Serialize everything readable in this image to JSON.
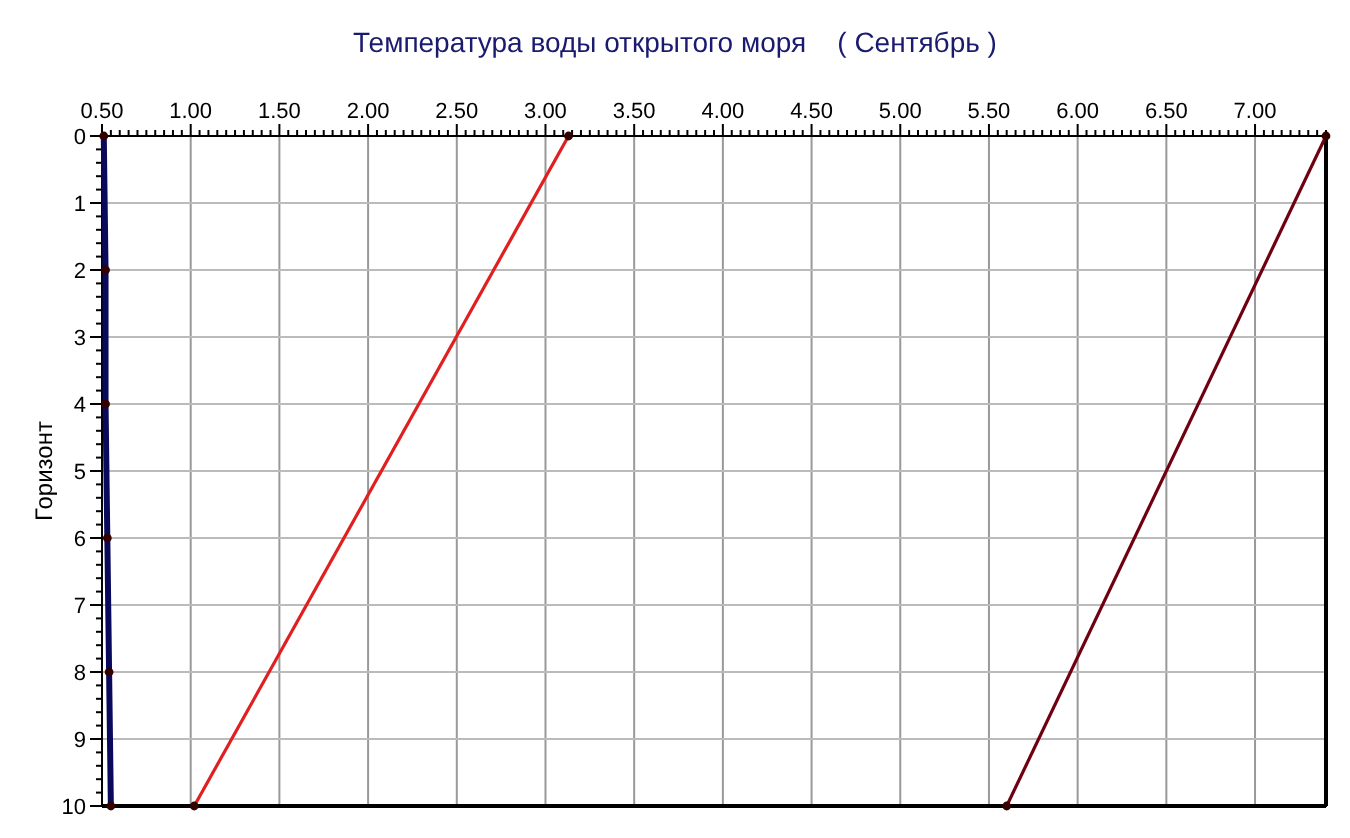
{
  "chart_data": {
    "type": "line",
    "title": "Температура воды открытого моря    ( Сентябрь )",
    "ylabel": "Горизонт",
    "xlim": [
      0.5,
      7.4
    ],
    "xticks": [
      {
        "value": 0.5,
        "label": "0.50"
      },
      {
        "value": 1,
        "label": "1.00"
      },
      {
        "value": 1.5,
        "label": "1.50"
      },
      {
        "value": 2,
        "label": "2.00"
      },
      {
        "value": 2.5,
        "label": "2.50"
      },
      {
        "value": 3,
        "label": "3.00"
      },
      {
        "value": 3.5,
        "label": "3.50"
      },
      {
        "value": 4,
        "label": "4.00"
      },
      {
        "value": 4.5,
        "label": "4.50"
      },
      {
        "value": 5,
        "label": "5.00"
      },
      {
        "value": 5.5,
        "label": "5.50"
      },
      {
        "value": 6,
        "label": "6.00"
      },
      {
        "value": 6.5,
        "label": "6.50"
      },
      {
        "value": 7,
        "label": "7.00"
      }
    ],
    "ylim": [
      10,
      0
    ],
    "yticks": [
      0,
      1,
      2,
      3,
      4,
      5,
      6,
      7,
      8,
      9,
      10
    ],
    "grid": true,
    "marker": "circle",
    "line_style": "solid",
    "series": [
      {
        "color": "#0a0a5c",
        "x": [
          0.51,
          0.52,
          0.52,
          0.53,
          0.54,
          0.55
        ],
        "values": [
          0,
          2,
          4,
          6,
          8,
          10
        ]
      },
      {
        "color": "#e02020",
        "x": [
          3.13,
          1.02
        ],
        "values": [
          0,
          10
        ]
      },
      {
        "color": "#700010",
        "x": [
          7.4,
          5.6
        ],
        "values": [
          0,
          10
        ]
      }
    ]
  }
}
